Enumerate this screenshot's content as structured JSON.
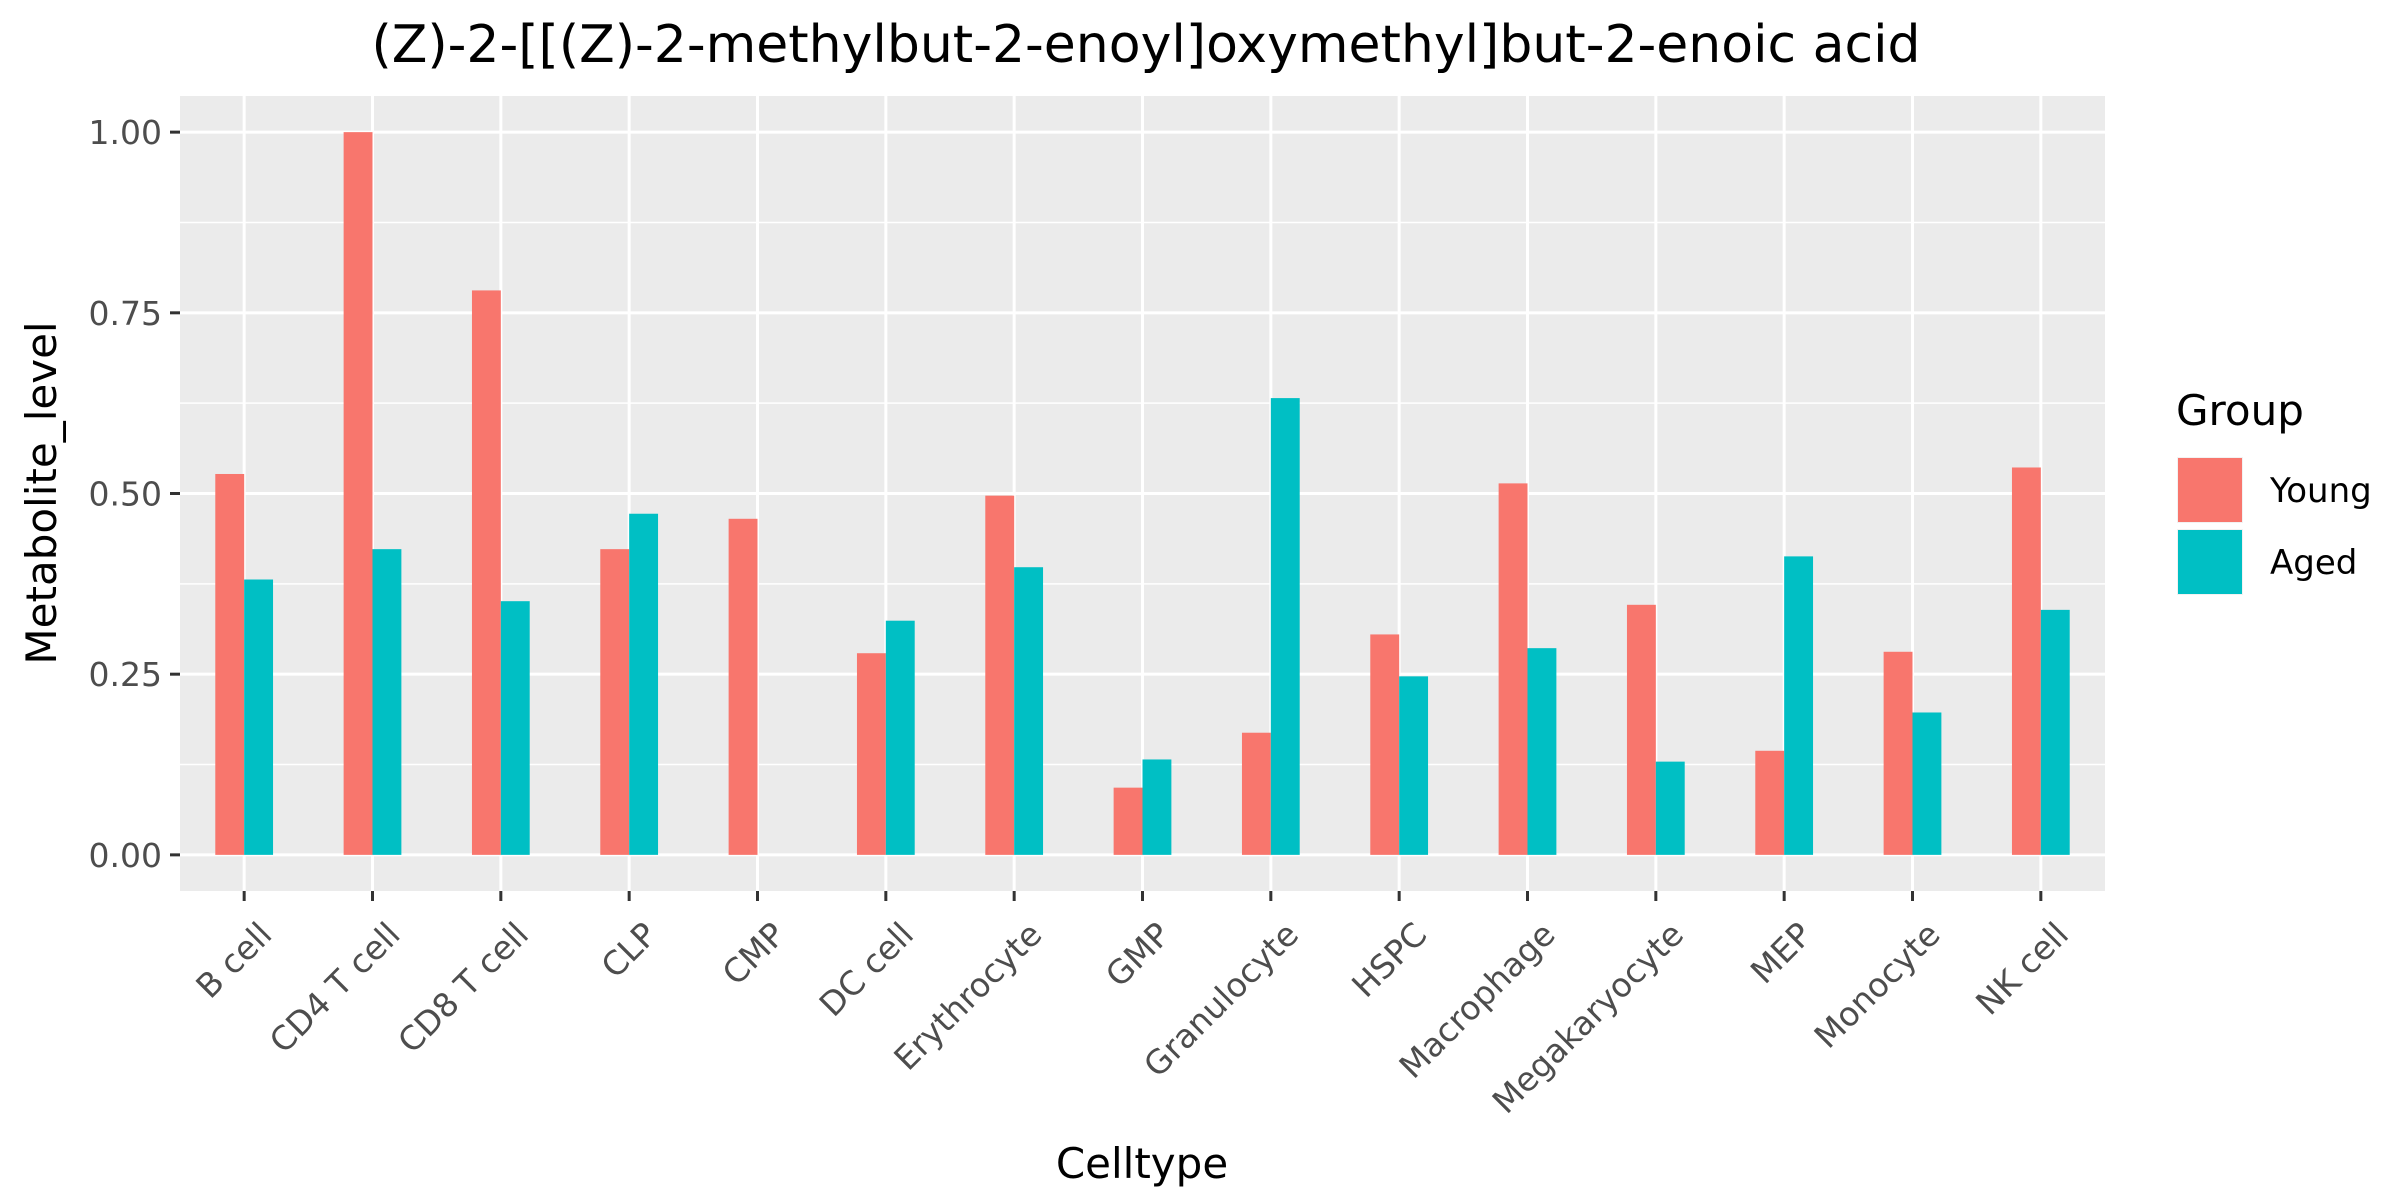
{
  "chart_data": {
    "type": "bar",
    "title": "(Z)-2-[[(Z)-2-methylbut-2-enoyl]oxymethyl]but-2-enoic acid",
    "xlabel": "Celltype",
    "ylabel": "Metabolite_level",
    "ylim": [
      -0.05,
      1.05
    ],
    "yticks": [
      0.0,
      0.25,
      0.5,
      0.75,
      1.0
    ],
    "ytick_labels": [
      "0.00",
      "0.25",
      "0.50",
      "0.75",
      "1.00"
    ],
    "grid": true,
    "legend_position": "right",
    "legend_title": "Group",
    "categories": [
      "B cell",
      "CD4 T cell",
      "CD8 T cell",
      "CLP",
      "CMP",
      "DC cell",
      "Erythrocyte",
      "GMP",
      "Granulocyte",
      "HSPC",
      "Macrophage",
      "Megakaryocyte",
      "MEP",
      "Monocyte",
      "NK cell"
    ],
    "series": [
      {
        "name": "Young",
        "color": "#F8766D",
        "values": [
          0.527,
          1.0,
          0.781,
          0.423,
          0.465,
          0.279,
          0.497,
          0.093,
          0.169,
          0.305,
          0.514,
          0.346,
          0.144,
          0.281,
          0.536
        ]
      },
      {
        "name": "Aged",
        "color": "#00BFC4",
        "values": [
          0.381,
          0.423,
          0.351,
          0.472,
          0.0,
          0.324,
          0.398,
          0.132,
          0.632,
          0.247,
          0.286,
          0.129,
          0.413,
          0.197,
          0.339
        ]
      }
    ]
  }
}
